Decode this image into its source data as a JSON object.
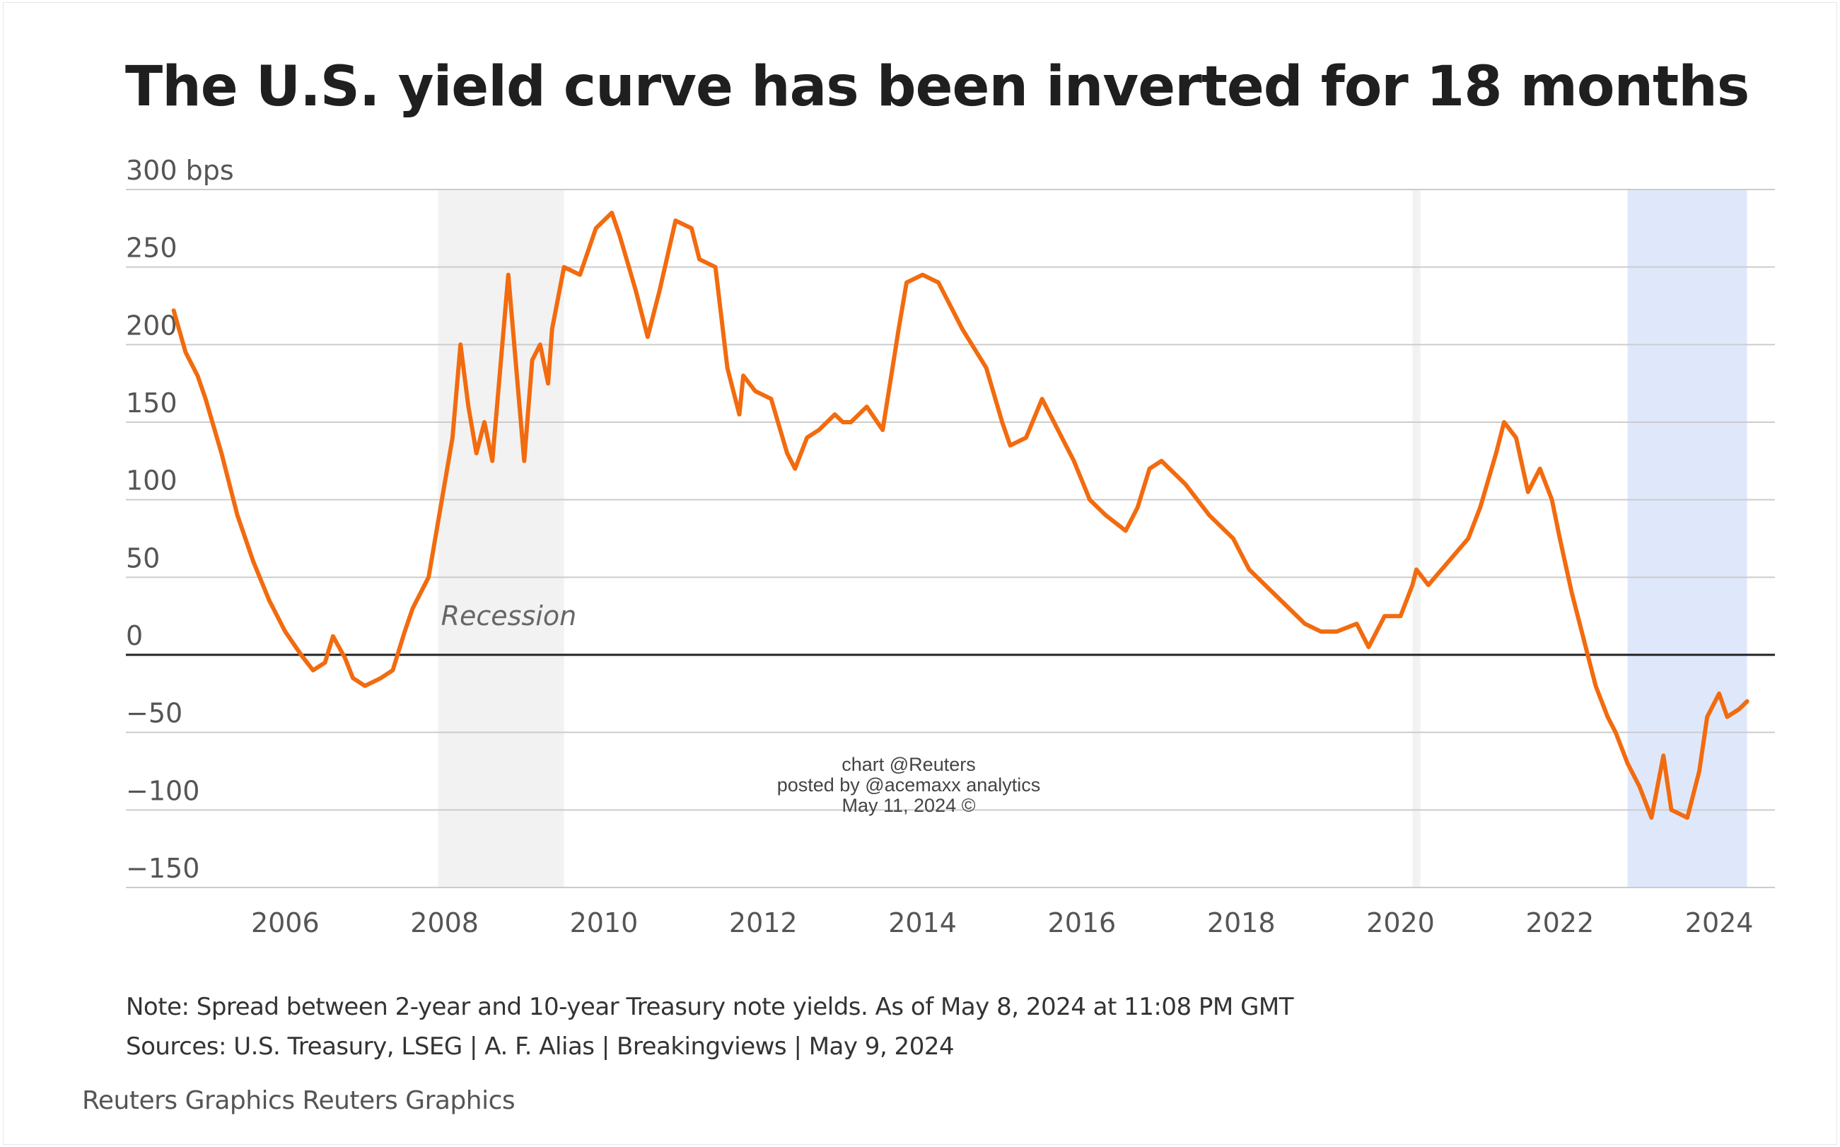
{
  "title": "The U.S. yield curve has been inverted for 18 months",
  "note": "Note: Spread between 2-year and 10-year Treasury note yields. As of May 8, 2024 at 11:08 PM GMT",
  "sources": "Sources: U.S. Treasury, LSEG | A. F. Alias | Breakingviews | May 9, 2024",
  "credit": "Reuters Graphics Reuters Graphics",
  "watermark": [
    "chart @Reuters",
    "posted by @acemaxx analytics",
    "May 11, 2024 ©"
  ],
  "colors": {
    "line": "#f26b0f",
    "recession": "#f2f2f2",
    "inversion": "#dfe8fb",
    "grid": "#cccccc",
    "zero": "#222222"
  },
  "chart_data": {
    "type": "line",
    "ylabel": "bps",
    "ylim": [
      -150,
      300
    ],
    "xlim": [
      2004.0,
      2024.7
    ],
    "yticks": [
      {
        "v": 300,
        "label": "300 bps"
      },
      {
        "v": 250,
        "label": "250"
      },
      {
        "v": 200,
        "label": "200"
      },
      {
        "v": 150,
        "label": "150"
      },
      {
        "v": 100,
        "label": "100"
      },
      {
        "v": 50,
        "label": "50"
      },
      {
        "v": 0,
        "label": "0"
      },
      {
        "v": -50,
        "label": "−50"
      },
      {
        "v": -100,
        "label": "−100"
      },
      {
        "v": -150,
        "label": "−150"
      }
    ],
    "xticks": [
      "2006",
      "2008",
      "2010",
      "2012",
      "2014",
      "2016",
      "2018",
      "2020",
      "2022",
      "2024"
    ],
    "shaded_regions": [
      {
        "start": 2007.92,
        "end": 2009.5,
        "label": "Recession",
        "kind": "recession"
      },
      {
        "start": 2020.15,
        "end": 2020.25,
        "label": "",
        "kind": "recession"
      },
      {
        "start": 2022.85,
        "end": 2024.35,
        "label": "",
        "kind": "inversion"
      }
    ],
    "series": [
      {
        "x": [
          2004.6,
          2004.75,
          2004.9,
          2005.0,
          2005.2,
          2005.4,
          2005.6,
          2005.8,
          2006.0,
          2006.2,
          2006.35,
          2006.5,
          2006.6,
          2006.75,
          2006.85,
          2007.0,
          2007.2,
          2007.35,
          2007.5,
          2007.6,
          2007.8,
          2007.95,
          2008.05,
          2008.1,
          2008.2,
          2008.3,
          2008.4,
          2008.5,
          2008.6,
          2008.7,
          2008.8,
          2008.9,
          2009.0,
          2009.1,
          2009.2,
          2009.3,
          2009.35,
          2009.5,
          2009.7,
          2009.9,
          2010.1,
          2010.2,
          2010.4,
          2010.55,
          2010.7,
          2010.9,
          2011.1,
          2011.2,
          2011.4,
          2011.55,
          2011.7,
          2011.75,
          2011.9,
          2012.1,
          2012.3,
          2012.4,
          2012.55,
          2012.7,
          2012.9,
          2013.0,
          2013.1,
          2013.3,
          2013.5,
          2013.7,
          2013.8,
          2014.0,
          2014.2,
          2014.5,
          2014.8,
          2015.0,
          2015.1,
          2015.3,
          2015.5,
          2015.7,
          2015.9,
          2016.1,
          2016.3,
          2016.55,
          2016.7,
          2016.85,
          2017.0,
          2017.3,
          2017.6,
          2017.9,
          2018.1,
          2018.3,
          2018.5,
          2018.8,
          2019.0,
          2019.2,
          2019.45,
          2019.6,
          2019.7,
          2019.8,
          2020.0,
          2020.15,
          2020.2,
          2020.35,
          2020.6,
          2020.85,
          2021.0,
          2021.2,
          2021.3,
          2021.45,
          2021.6,
          2021.75,
          2021.9,
          2022.0,
          2022.15,
          2022.3,
          2022.45,
          2022.6,
          2022.7,
          2022.85,
          2023.0,
          2023.15,
          2023.3,
          2023.4,
          2023.6,
          2023.75,
          2023.85,
          2024.0,
          2024.1,
          2024.25,
          2024.35
        ],
        "y": [
          222,
          195,
          180,
          165,
          130,
          90,
          60,
          35,
          15,
          0,
          -10,
          -5,
          12,
          -2,
          -15,
          -20,
          -15,
          -10,
          15,
          30,
          50,
          95,
          125,
          140,
          200,
          160,
          130,
          150,
          125,
          185,
          245,
          185,
          125,
          190,
          200,
          175,
          210,
          250,
          245,
          275,
          285,
          270,
          235,
          205,
          235,
          280,
          275,
          255,
          250,
          185,
          155,
          180,
          170,
          165,
          130,
          120,
          140,
          145,
          155,
          150,
          150,
          160,
          145,
          210,
          240,
          245,
          240,
          210,
          185,
          150,
          135,
          140,
          165,
          145,
          125,
          100,
          90,
          80,
          95,
          120,
          125,
          110,
          90,
          75,
          55,
          45,
          35,
          20,
          15,
          15,
          20,
          5,
          15,
          25,
          25,
          45,
          55,
          45,
          60,
          75,
          95,
          130,
          150,
          140,
          105,
          120,
          100,
          75,
          40,
          10,
          -20,
          -40,
          -50,
          -70,
          -85,
          -105,
          -65,
          -100,
          -105,
          -75,
          -40,
          -25,
          -40,
          -35,
          -30
        ]
      }
    ]
  }
}
